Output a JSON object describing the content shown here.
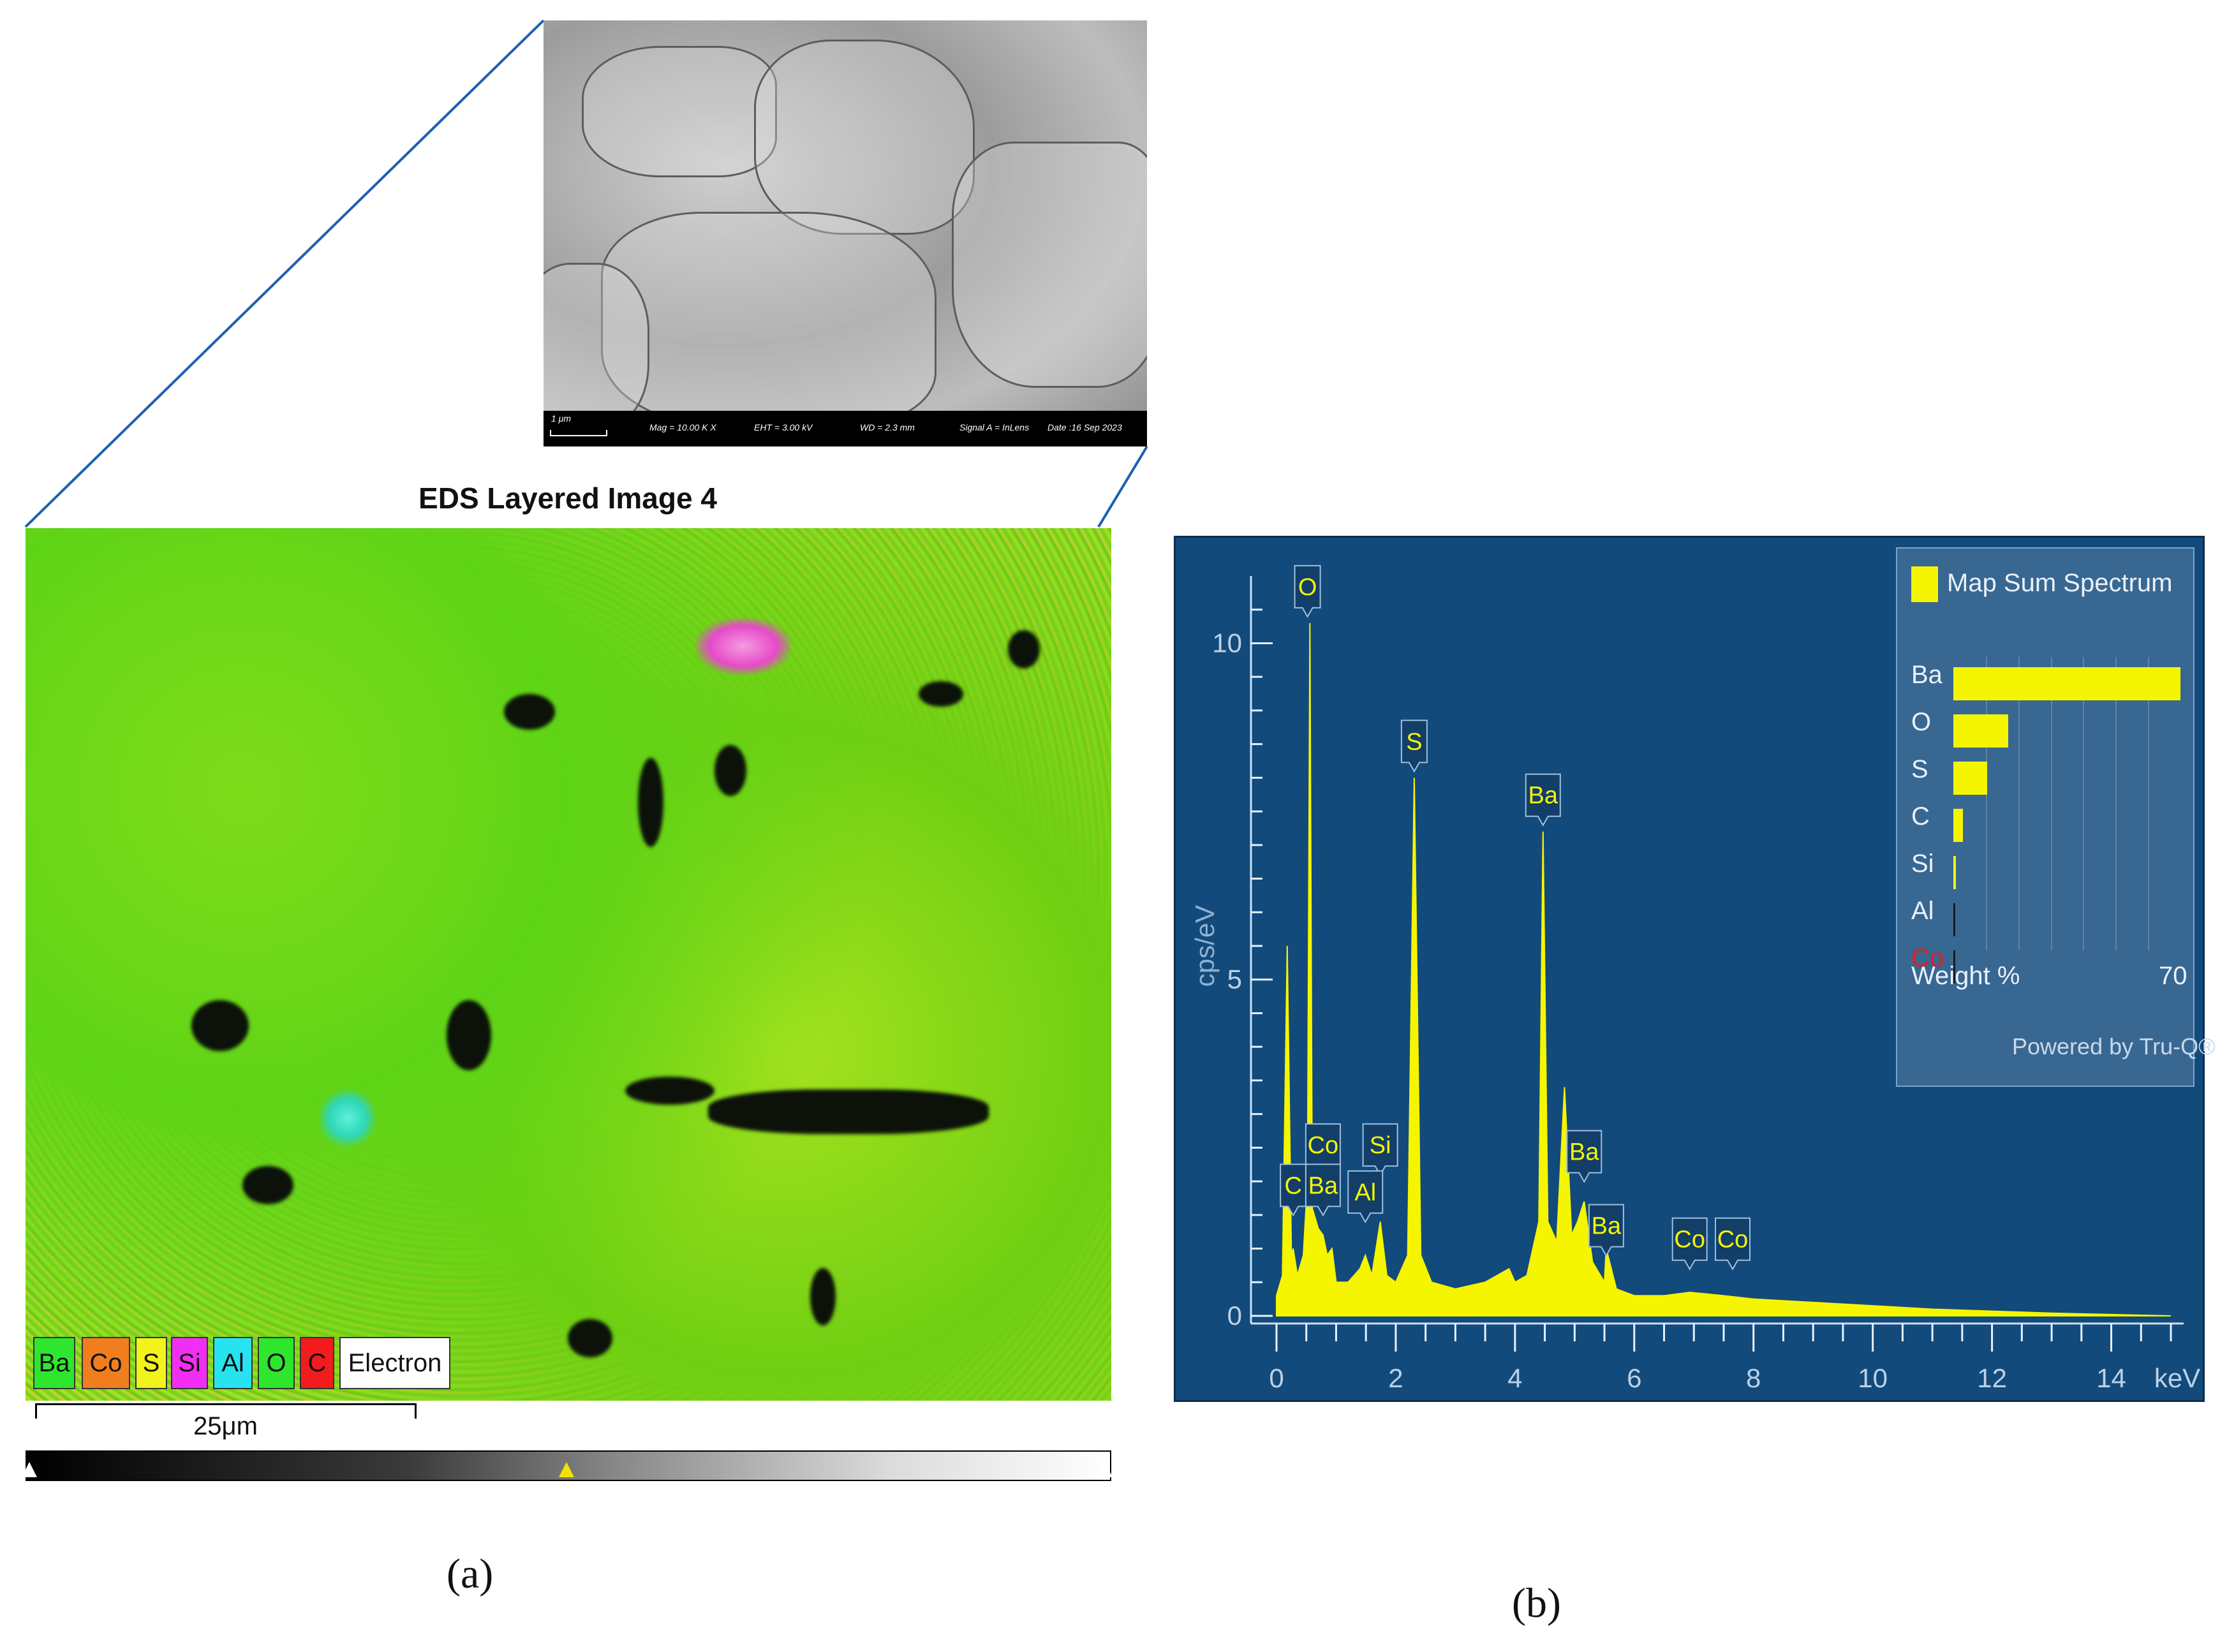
{
  "panel_a": {
    "sem_info": {
      "scale": "1 μm",
      "mag": "Mag = 10.00 K X",
      "eht": "EHT = 3.00 kV",
      "wd": "WD = 2.3 mm",
      "signal": "Signal A = InLens",
      "date": "Date :16 Sep 2023"
    },
    "eds_title": "EDS Layered Image 4",
    "legend": [
      {
        "label": "Ba",
        "color": "#2ee62e"
      },
      {
        "label": "Co",
        "color": "#f07e1f"
      },
      {
        "label": "S",
        "color": "#f2f21c"
      },
      {
        "label": "Si",
        "color": "#f22ef2"
      },
      {
        "label": "Al",
        "color": "#27e3f0"
      },
      {
        "label": "O",
        "color": "#2ee62e"
      },
      {
        "label": "C",
        "color": "#f21c1c"
      },
      {
        "label": "Electron",
        "color": "#ffffff"
      }
    ],
    "scale_bar": "25μm",
    "label": "(a)"
  },
  "panel_b": {
    "label": "(b)",
    "inset": {
      "title": "Map Sum Spectrum",
      "elements": [
        {
          "label": "Ba",
          "value": 70,
          "color": "#e8f1fa"
        },
        {
          "label": "O",
          "value": 17,
          "color": "#e8f1fa"
        },
        {
          "label": "S",
          "value": 10.5,
          "color": "#e8f1fa"
        },
        {
          "label": "C",
          "value": 3,
          "color": "#e8f1fa"
        },
        {
          "label": "Si",
          "value": 0.8,
          "color": "#e8f1fa"
        },
        {
          "label": "Al",
          "value": 0.4,
          "color": "#e8f1fa"
        },
        {
          "label": "Co",
          "value": 0.3,
          "color": "#e02020"
        }
      ],
      "axis_label": "Weight %",
      "axis_max": "70",
      "footer": "Powered by Tru-Q®"
    },
    "chart_data": {
      "type": "line",
      "xlabel": "keV",
      "ylabel": "cps/eV",
      "xlim": [
        0,
        15
      ],
      "ylim": [
        0,
        11
      ],
      "x_ticks": [
        "0",
        "2",
        "4",
        "6",
        "8",
        "10",
        "12",
        "14"
      ],
      "y_ticks": [
        "0",
        "5",
        "10"
      ],
      "series": [
        {
          "x": [
            0.0,
            0.1,
            0.18,
            0.25,
            0.28,
            0.35,
            0.45,
            0.52,
            0.56,
            0.6,
            0.7,
            0.78,
            0.85,
            0.93,
            1.0,
            1.2,
            1.4,
            1.49,
            1.6,
            1.74,
            1.85,
            2.0,
            2.2,
            2.31,
            2.42,
            2.6,
            3.0,
            3.5,
            3.9,
            4.0,
            4.2,
            4.4,
            4.47,
            4.55,
            4.7,
            4.83,
            4.95,
            5.05,
            5.16,
            5.3,
            5.5,
            5.53,
            5.7,
            6.0,
            6.5,
            6.93,
            7.5,
            8.0,
            9.0,
            10.0,
            11.0,
            12.0,
            13.0,
            14.0,
            15.0
          ],
          "y": [
            0.3,
            0.6,
            5.5,
            0.9,
            1.0,
            0.6,
            0.9,
            2.0,
            10.3,
            1.6,
            1.3,
            1.2,
            0.9,
            1.0,
            0.5,
            0.5,
            0.7,
            0.9,
            0.6,
            1.4,
            0.6,
            0.5,
            0.9,
            8.0,
            0.9,
            0.5,
            0.4,
            0.5,
            0.7,
            0.5,
            0.6,
            1.4,
            7.2,
            1.4,
            1.1,
            3.4,
            1.2,
            1.4,
            1.7,
            0.8,
            0.5,
            1.0,
            0.4,
            0.3,
            0.3,
            0.35,
            0.3,
            0.25,
            0.2,
            0.15,
            0.1,
            0.07,
            0.04,
            0.02,
            0.0
          ],
          "color": "#f5f500"
        }
      ],
      "annotations": [
        {
          "label": "O",
          "x": 0.52,
          "y": 10.3
        },
        {
          "label": "S",
          "x": 2.31,
          "y": 8.0
        },
        {
          "label": "Ba",
          "x": 4.47,
          "y": 7.2
        },
        {
          "label": "Co",
          "x": 0.78,
          "y": 2.0
        },
        {
          "label": "Si",
          "x": 1.74,
          "y": 2.0
        },
        {
          "label": "C",
          "x": 0.28,
          "y": 1.4
        },
        {
          "label": "Ba",
          "x": 0.78,
          "y": 1.4
        },
        {
          "label": "Al",
          "x": 1.49,
          "y": 1.3
        },
        {
          "label": "Ba",
          "x": 5.16,
          "y": 1.9
        },
        {
          "label": "Ba",
          "x": 5.53,
          "y": 0.8
        },
        {
          "label": "Co",
          "x": 6.93,
          "y": 0.6
        },
        {
          "label": "Co",
          "x": 7.65,
          "y": 0.6
        }
      ]
    }
  }
}
